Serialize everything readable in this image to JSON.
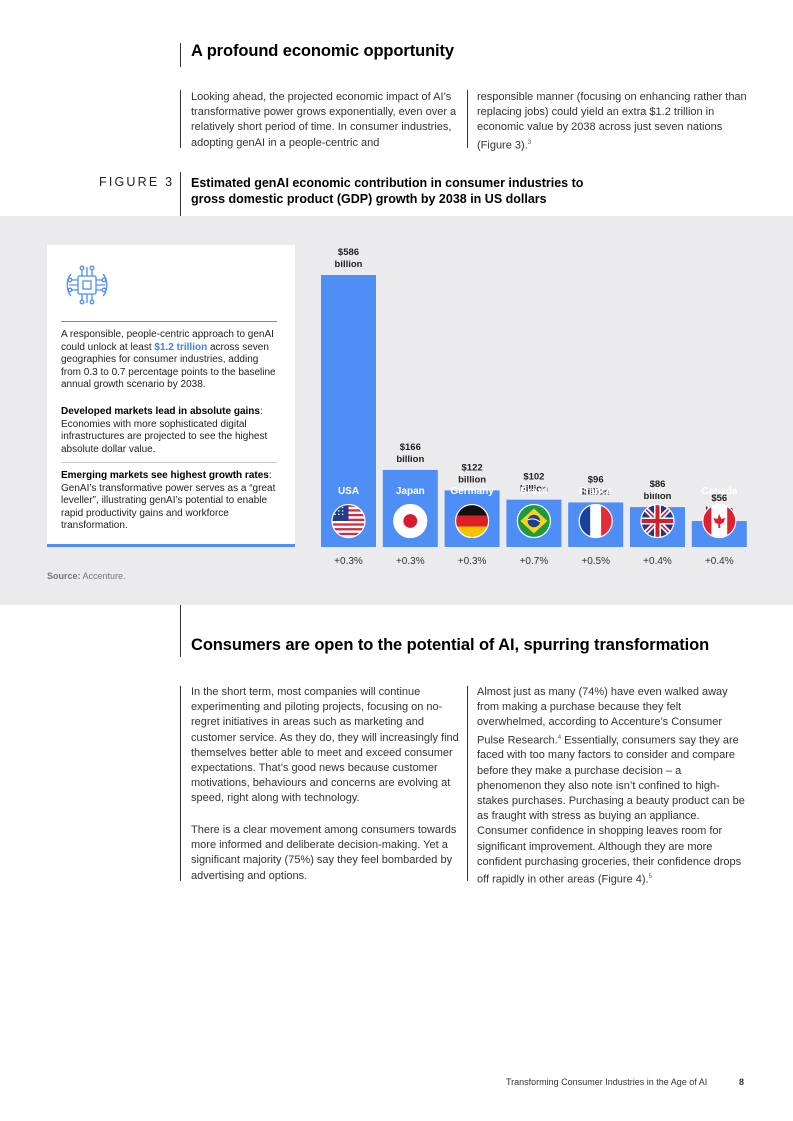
{
  "section1": {
    "heading": "A profound economic opportunity",
    "col1": "Looking ahead, the projected economic impact of AI’s transformative power grows exponentially, even over a relatively short period of time. In consumer industries, adopting genAI in a people-centric and",
    "col2_text": "responsible manner (focusing on enhancing rather than replacing jobs) could yield an extra $1.2 trillion in economic value by 2038 across just seven nations (Figure 3).",
    "col2_ref": "3"
  },
  "figure": {
    "label": "FIGURE 3",
    "title": "Estimated genAI economic contribution in consumer industries to gross domestic product (GDP) growth by 2038 in US dollars"
  },
  "card": {
    "icon": "ai-chip-icon",
    "p1_before": "A responsible, people-centric approach to genAI could unlock at least ",
    "p1_highlight": "$1.2 trillion",
    "p1_after": " across seven geographies for consumer industries, adding from 0.3 to 0.7 percentage points to the baseline annual growth scenario by 2038.",
    "p2_title": "Developed markets lead in absolute gains",
    "p2_text": ": Economies with more sophisticated digital infrastructures are projected to see the highest absolute dollar value.",
    "p3_title": "Emerging markets see highest growth rates",
    "p3_text": ": GenAI’s transformative power serves as a “great leveller”, illustrating genAI’s potential to enable rapid productivity gains and workforce transformation.",
    "accent_color": "#4f8ff5",
    "highlight_color": "#3f7fe8"
  },
  "chart_data": {
    "type": "bar",
    "categories": [
      "USA",
      "Japan",
      "Germany",
      "Brazil",
      "France",
      "UK",
      "Canada"
    ],
    "values": [
      586,
      166,
      122,
      102,
      96,
      86,
      56
    ],
    "value_labels": [
      "$586",
      "$166",
      "$122",
      "$102",
      "$96",
      "$86",
      "$56"
    ],
    "unit_label": "billion",
    "growth_labels": [
      "+0.3%",
      "+0.3%",
      "+0.3%",
      "+0.7%",
      "+0.5%",
      "+0.4%",
      "+0.4%"
    ],
    "flags": [
      "usa-flag-icon",
      "japan-flag-icon",
      "germany-flag-icon",
      "brazil-flag-icon",
      "france-flag-icon",
      "uk-flag-icon",
      "canada-flag-icon"
    ],
    "bar_color": "#4f8ff5"
  },
  "source": {
    "label": "Source:",
    "text": "Accenture."
  },
  "section2": {
    "heading": "Consumers are open to the potential of AI, spurring transformation",
    "col1_p1": "In the short term, most companies will continue experimenting and piloting projects, focusing on no-regret initiatives in areas such as marketing and customer service. As they do, they will increasingly find themselves better able to meet and exceed consumer expectations. That’s good news because customer motivations, behaviours and concerns are evolving at speed, right along with technology.",
    "col1_p2": "There is a clear movement among consumers towards more informed and deliberate decision-making. Yet a significant majority (75%) say they feel bombarded by advertising and options.",
    "col2_a": "Almost just as many (74%) have even walked away from making a purchase because they felt overwhelmed, according to Accenture’s Consumer Pulse Research.",
    "col2_ref1": "4",
    "col2_b": " Essentially, consumers say they are faced with too many factors to consider and compare before they make a purchase decision – a phenomenon they also note isn’t confined to high-stakes purchases. Purchasing a beauty product can be as fraught with stress as buying an appliance. Consumer confidence in shopping leaves room for significant improvement. Although they are more confident purchasing groceries, their confidence drops off rapidly in other areas (Figure 4).",
    "col2_ref2": "5"
  },
  "footer": {
    "title": "Transforming Consumer Industries in the Age of AI",
    "page": "8"
  }
}
